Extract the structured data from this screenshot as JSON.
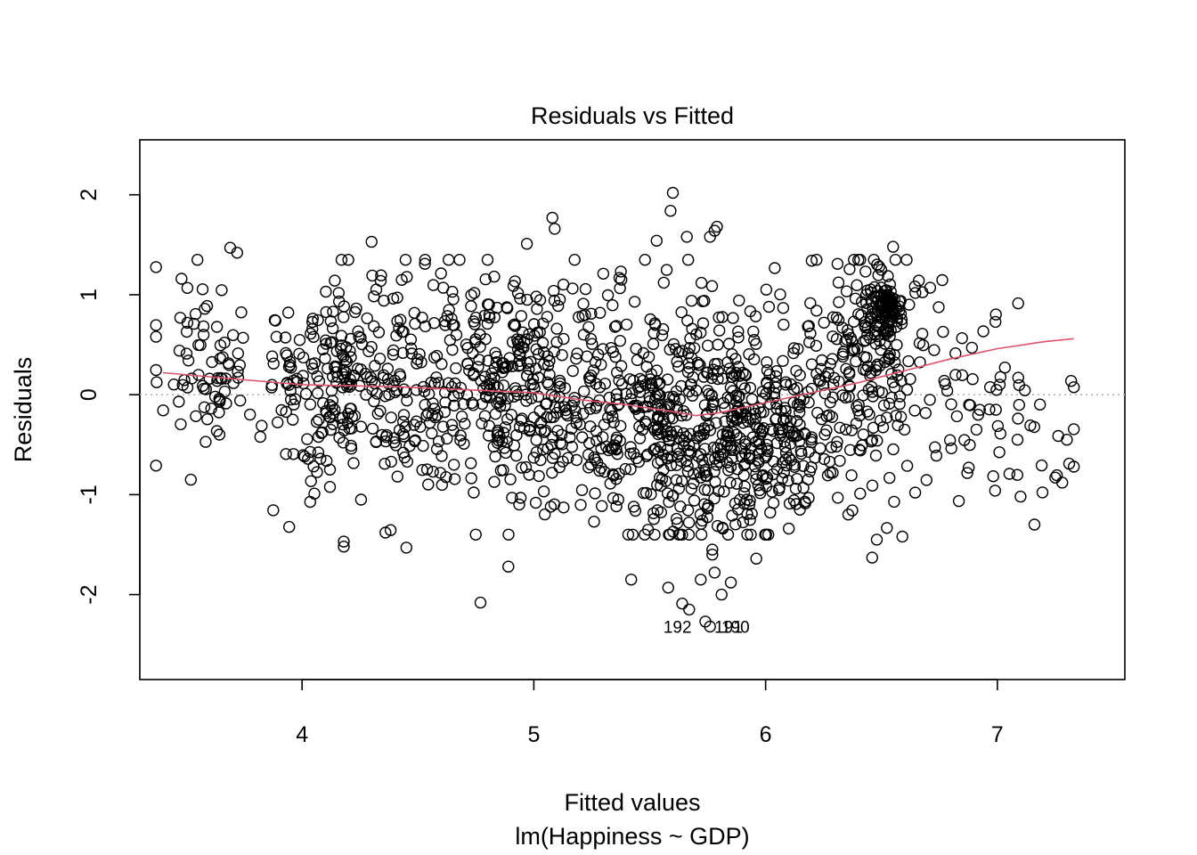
{
  "chart_data": {
    "type": "scatter",
    "title": "Residuals vs Fitted",
    "xlabel": "Fitted values",
    "subtitle": "lm(Happiness ~ GDP)",
    "ylabel": "Residuals",
    "xlim": [
      3.3,
      7.55
    ],
    "ylim": [
      -2.85,
      2.55
    ],
    "x_ticks": [
      {
        "value": 4,
        "label": "4"
      },
      {
        "value": 5,
        "label": "5"
      },
      {
        "value": 6,
        "label": "6"
      },
      {
        "value": 7,
        "label": "7"
      }
    ],
    "y_ticks": [
      {
        "value": -2,
        "label": "-2"
      },
      {
        "value": -1,
        "label": "-1"
      },
      {
        "value": 0,
        "label": "0"
      },
      {
        "value": 1,
        "label": "1"
      },
      {
        "value": 2,
        "label": "2"
      }
    ],
    "reference_line": {
      "y": 0,
      "style": "dotted",
      "color": "#b3b3b3"
    },
    "smooth_line": {
      "color": "#df536b",
      "x": [
        3.4,
        3.6,
        3.8,
        4.0,
        4.2,
        4.4,
        4.6,
        4.8,
        5.0,
        5.2,
        5.4,
        5.6,
        5.7,
        5.8,
        6.0,
        6.2,
        6.4,
        6.6,
        6.8,
        7.0,
        7.2,
        7.33
      ],
      "y": [
        0.22,
        0.18,
        0.14,
        0.1,
        0.09,
        0.08,
        0.06,
        0.04,
        0.02,
        -0.05,
        -0.1,
        -0.17,
        -0.21,
        -0.18,
        -0.08,
        0.02,
        0.12,
        0.24,
        0.36,
        0.46,
        0.53,
        0.56
      ]
    },
    "labeled_points": [
      {
        "x": 5.62,
        "y": -2.38,
        "label": "192"
      },
      {
        "x": 5.87,
        "y": -2.38,
        "label": "190"
      },
      {
        "x": 5.84,
        "y": -2.38,
        "label": "191"
      }
    ],
    "point_clusters": [
      {
        "cx": 3.55,
        "cy": 0.4,
        "sx": 0.1,
        "sy": 0.45,
        "n": 60
      },
      {
        "cx": 4.2,
        "cy": 0.1,
        "sx": 0.22,
        "sy": 0.55,
        "n": 260
      },
      {
        "cx": 4.8,
        "cy": 0.15,
        "sx": 0.25,
        "sy": 0.55,
        "n": 260
      },
      {
        "cx": 5.2,
        "cy": 0.0,
        "sx": 0.2,
        "sy": 0.6,
        "n": 200
      },
      {
        "cx": 5.6,
        "cy": -0.3,
        "sx": 0.18,
        "sy": 0.6,
        "n": 240
      },
      {
        "cx": 5.85,
        "cy": -0.4,
        "sx": 0.15,
        "sy": 0.6,
        "n": 180
      },
      {
        "cx": 6.1,
        "cy": -0.3,
        "sx": 0.18,
        "sy": 0.5,
        "n": 180
      },
      {
        "cx": 6.45,
        "cy": 0.35,
        "sx": 0.13,
        "sy": 0.55,
        "n": 170
      },
      {
        "cx": 6.52,
        "cy": 0.85,
        "sx": 0.04,
        "sy": 0.12,
        "n": 90
      },
      {
        "cx": 6.85,
        "cy": -0.1,
        "sx": 0.2,
        "sy": 0.55,
        "n": 50
      },
      {
        "cx": 7.15,
        "cy": -0.4,
        "sx": 0.12,
        "sy": 0.4,
        "n": 14
      }
    ],
    "points_extra": [
      {
        "x": 3.37,
        "y": 0.58
      },
      {
        "x": 3.37,
        "y": -0.71
      },
      {
        "x": 3.48,
        "y": 1.16
      },
      {
        "x": 3.69,
        "y": 1.47
      },
      {
        "x": 3.72,
        "y": 1.42
      },
      {
        "x": 3.52,
        "y": -0.85
      },
      {
        "x": 4.3,
        "y": 1.53
      },
      {
        "x": 4.53,
        "y": 1.31
      },
      {
        "x": 4.18,
        "y": -1.47
      },
      {
        "x": 4.18,
        "y": -1.52
      },
      {
        "x": 4.36,
        "y": -1.38
      },
      {
        "x": 4.45,
        "y": -1.53
      },
      {
        "x": 4.77,
        "y": -2.08
      },
      {
        "x": 4.89,
        "y": -1.72
      },
      {
        "x": 5.08,
        "y": 1.77
      },
      {
        "x": 5.09,
        "y": 1.66
      },
      {
        "x": 4.97,
        "y": 1.51
      },
      {
        "x": 5.6,
        "y": 2.02
      },
      {
        "x": 5.59,
        "y": 1.84
      },
      {
        "x": 5.53,
        "y": 1.54
      },
      {
        "x": 5.66,
        "y": 1.58
      },
      {
        "x": 5.76,
        "y": 1.58
      },
      {
        "x": 5.79,
        "y": 1.68
      },
      {
        "x": 5.78,
        "y": 1.64
      },
      {
        "x": 5.42,
        "y": -1.85
      },
      {
        "x": 5.58,
        "y": -1.93
      },
      {
        "x": 5.64,
        "y": -2.09
      },
      {
        "x": 5.67,
        "y": -2.15
      },
      {
        "x": 5.74,
        "y": -2.27
      },
      {
        "x": 5.76,
        "y": -2.32
      },
      {
        "x": 5.81,
        "y": -2.0
      },
      {
        "x": 5.85,
        "y": -1.88
      },
      {
        "x": 5.78,
        "y": -1.78
      },
      {
        "x": 5.77,
        "y": -1.55
      },
      {
        "x": 5.77,
        "y": -1.6
      },
      {
        "x": 5.72,
        "y": -1.85
      },
      {
        "x": 5.96,
        "y": -1.64
      },
      {
        "x": 6.1,
        "y": -1.34
      },
      {
        "x": 6.46,
        "y": -1.63
      },
      {
        "x": 6.48,
        "y": -1.45
      },
      {
        "x": 6.59,
        "y": -1.42
      },
      {
        "x": 6.55,
        "y": 1.48
      },
      {
        "x": 6.49,
        "y": 1.28
      },
      {
        "x": 6.71,
        "y": 1.07
      },
      {
        "x": 6.91,
        "y": -0.35
      },
      {
        "x": 6.99,
        "y": -0.96
      },
      {
        "x": 7.01,
        "y": 0.1
      },
      {
        "x": 7.09,
        "y": 0.17
      },
      {
        "x": 7.1,
        "y": -1.02
      },
      {
        "x": 7.25,
        "y": -0.83
      },
      {
        "x": 7.28,
        "y": -0.88
      },
      {
        "x": 7.3,
        "y": -0.45
      },
      {
        "x": 7.31,
        "y": -0.69
      },
      {
        "x": 7.33,
        "y": -0.72
      }
    ],
    "grid": false,
    "legend": "none",
    "colors": {
      "points": "#000000",
      "smooth": "#df536b",
      "reference": "#b3b3b3"
    }
  }
}
